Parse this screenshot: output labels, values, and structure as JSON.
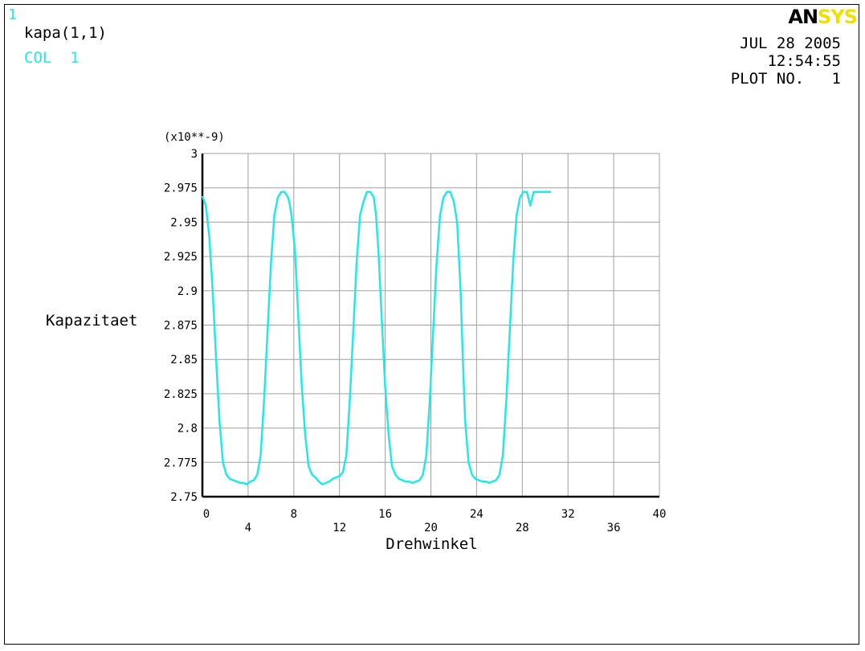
{
  "header": {
    "window_number": "1",
    "plot_label": "kapa(1,1)",
    "col_label": "COL  1",
    "date": "JUL 28 2005",
    "time": "12:54:55",
    "plot_no": "PLOT NO.   1",
    "logo_part1": "AN",
    "logo_part2": "SYS"
  },
  "colors": {
    "curve": "#22e8e8",
    "grid": "#a0a0a0",
    "axis": "#000000",
    "logo_black": "#000000",
    "logo_yellow": "#f0e000",
    "cyan_text": "#22e8e8"
  },
  "chart_data": {
    "type": "line",
    "xlabel": "Drehwinkel",
    "ylabel": "Kapazitaet",
    "yscale_label": "(x10**-9)",
    "xlim": [
      0,
      40
    ],
    "ylim": [
      2.75,
      3.0
    ],
    "x_ticks": [
      "0",
      "4",
      "8",
      "12",
      "16",
      "20",
      "24",
      "28",
      "32",
      "36",
      "40"
    ],
    "y_ticks": [
      "2.75",
      "2.775",
      "2.8",
      "2.825",
      "2.85",
      "2.875",
      "2.9",
      "2.925",
      "2.95",
      "2.975",
      "3"
    ],
    "grid": true,
    "series": [
      {
        "x": [
          0,
          0.3,
          0.6,
          0.9,
          1.2,
          1.5,
          1.8,
          2.1,
          2.4,
          2.7,
          3.0,
          3.3,
          3.6,
          3.9,
          4.2,
          4.5,
          4.8,
          5.1,
          5.4,
          5.7,
          6.0,
          6.3,
          6.6,
          6.9,
          7.2,
          7.5,
          7.6,
          7.8,
          8.1,
          8.4,
          8.7,
          9.0,
          9.3,
          9.6,
          9.9,
          10.2,
          10.5,
          10.8,
          11.1,
          11.4,
          11.7,
          12.0,
          12.3,
          12.6,
          12.9,
          13.2,
          13.5,
          13.8,
          14.1,
          14.4,
          14.7,
          15.0,
          15.2,
          15.4,
          15.7,
          16.0,
          16.3,
          16.6,
          16.9,
          17.2,
          17.5,
          17.8,
          18.1,
          18.4,
          18.7,
          19.0,
          19.3,
          19.6,
          19.9,
          20.2,
          20.5,
          20.8,
          21.1,
          21.4,
          21.7,
          22.0,
          22.3,
          22.6,
          22.8,
          23.0,
          23.3,
          23.6,
          23.9,
          24.2,
          24.5,
          24.8,
          25.1,
          25.4,
          25.7,
          26.0,
          26.3,
          26.6,
          26.9,
          27.2,
          27.5,
          27.8,
          28.1,
          28.4,
          28.7,
          29.0,
          29.3,
          29.6,
          29.9,
          30.2,
          30.5
        ],
        "values": [
          2.969,
          2.962,
          2.94,
          2.9,
          2.85,
          2.805,
          2.775,
          2.766,
          2.763,
          2.762,
          2.761,
          2.76,
          2.76,
          2.759,
          2.761,
          2.762,
          2.766,
          2.78,
          2.82,
          2.87,
          2.92,
          2.955,
          2.968,
          2.972,
          2.972,
          2.968,
          2.965,
          2.955,
          2.93,
          2.88,
          2.83,
          2.795,
          2.772,
          2.766,
          2.764,
          2.761,
          2.759,
          2.76,
          2.761,
          2.763,
          2.764,
          2.765,
          2.768,
          2.78,
          2.82,
          2.87,
          2.92,
          2.955,
          2.965,
          2.972,
          2.972,
          2.968,
          2.955,
          2.93,
          2.88,
          2.83,
          2.795,
          2.772,
          2.766,
          2.763,
          2.762,
          2.761,
          2.761,
          2.76,
          2.761,
          2.762,
          2.766,
          2.78,
          2.82,
          2.87,
          2.92,
          2.955,
          2.968,
          2.972,
          2.972,
          2.965,
          2.95,
          2.9,
          2.85,
          2.805,
          2.775,
          2.766,
          2.763,
          2.762,
          2.761,
          2.761,
          2.76,
          2.761,
          2.762,
          2.766,
          2.78,
          2.82,
          2.87,
          2.92,
          2.955,
          2.968,
          2.972,
          2.972,
          2.962,
          2.972,
          2.972,
          2.972,
          2.972,
          2.972,
          2.972
        ]
      }
    ]
  }
}
